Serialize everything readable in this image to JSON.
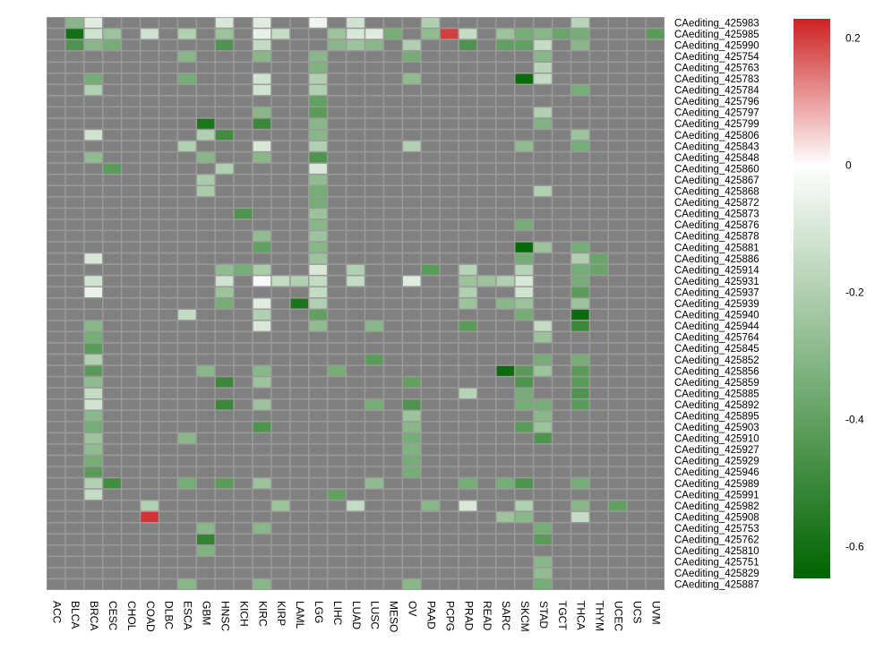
{
  "chart_data": {
    "type": "heatmap",
    "columns": [
      "ACC",
      "BLCA",
      "BRCA",
      "CESC",
      "CHOL",
      "COAD",
      "DLBC",
      "ESCA",
      "GBM",
      "HNSC",
      "KICH",
      "KIRC",
      "KIRP",
      "LAML",
      "LGG",
      "LIHC",
      "LUAD",
      "LUSC",
      "MESO",
      "OV",
      "PAAD",
      "PCPG",
      "PRAD",
      "READ",
      "SARC",
      "SKCM",
      "STAD",
      "TGCT",
      "THCA",
      "THYM",
      "UCEC",
      "UCS",
      "UVM"
    ],
    "rows": [
      "CAediting_425983",
      "CAediting_425985",
      "CAediting_425990",
      "CAediting_425754",
      "CAediting_425763",
      "CAediting_425783",
      "CAediting_425784",
      "CAediting_425796",
      "CAediting_425797",
      "CAediting_425799",
      "CAediting_425806",
      "CAediting_425843",
      "CAediting_425848",
      "CAediting_425860",
      "CAediting_425867",
      "CAediting_425868",
      "CAediting_425872",
      "CAediting_425873",
      "CAediting_425876",
      "CAediting_425878",
      "CAediting_425881",
      "CAediting_425886",
      "CAediting_425914",
      "CAediting_425931",
      "CAediting_425937",
      "CAediting_425939",
      "CAediting_425940",
      "CAediting_425944",
      "CAediting_425764",
      "CAediting_425845",
      "CAediting_425852",
      "CAediting_425856",
      "CAediting_425859",
      "CAediting_425885",
      "CAediting_425892",
      "CAediting_425895",
      "CAediting_425903",
      "CAediting_425910",
      "CAediting_425927",
      "CAediting_425929",
      "CAediting_425946",
      "CAediting_425989",
      "CAediting_425991",
      "CAediting_425982",
      "CAediting_425908",
      "CAediting_425753",
      "CAediting_425762",
      "CAediting_425810",
      "CAediting_425751",
      "CAediting_425829",
      "CAediting_425887"
    ],
    "missing_color": "#808080",
    "color_scale": {
      "min": -0.65,
      "max": 0.23,
      "stops": [
        {
          "value": -0.65,
          "color": "#006400"
        },
        {
          "value": 0,
          "color": "#ffffff"
        },
        {
          "value": 0.23,
          "color": "#cc2222"
        }
      ],
      "ticks": [
        {
          "value": 0.2,
          "label": "0.2"
        },
        {
          "value": 0,
          "label": "0"
        },
        {
          "value": -0.2,
          "label": "-0.2"
        },
        {
          "value": -0.4,
          "label": "-0.4"
        },
        {
          "value": -0.6,
          "label": "-0.6"
        }
      ]
    },
    "legend_position": "right",
    "cells": [
      [
        0,
        1,
        -0.3
      ],
      [
        0,
        2,
        -0.08
      ],
      [
        0,
        9,
        -0.1
      ],
      [
        0,
        11,
        -0.08
      ],
      [
        0,
        14,
        -0.04
      ],
      [
        0,
        16,
        -0.12
      ],
      [
        0,
        20,
        -0.2
      ],
      [
        0,
        28,
        -0.18
      ],
      [
        1,
        1,
        -0.6
      ],
      [
        1,
        2,
        -0.12
      ],
      [
        1,
        3,
        -0.25
      ],
      [
        1,
        5,
        -0.12
      ],
      [
        1,
        7,
        -0.2
      ],
      [
        1,
        9,
        -0.25
      ],
      [
        1,
        11,
        -0.06
      ],
      [
        1,
        12,
        -0.15
      ],
      [
        1,
        15,
        -0.25
      ],
      [
        1,
        16,
        -0.1
      ],
      [
        1,
        17,
        -0.08
      ],
      [
        1,
        18,
        -0.35
      ],
      [
        1,
        20,
        -0.28
      ],
      [
        1,
        21,
        0.2
      ],
      [
        1,
        22,
        -0.15
      ],
      [
        1,
        24,
        -0.25
      ],
      [
        1,
        25,
        -0.35
      ],
      [
        1,
        26,
        -0.3
      ],
      [
        1,
        27,
        -0.38
      ],
      [
        1,
        28,
        -0.35
      ],
      [
        1,
        32,
        -0.42
      ],
      [
        2,
        1,
        -0.45
      ],
      [
        2,
        2,
        -0.3
      ],
      [
        2,
        3,
        -0.35
      ],
      [
        2,
        9,
        -0.45
      ],
      [
        2,
        11,
        -0.15
      ],
      [
        2,
        15,
        -0.3
      ],
      [
        2,
        16,
        -0.25
      ],
      [
        2,
        17,
        -0.3
      ],
      [
        2,
        19,
        -0.2
      ],
      [
        2,
        22,
        -0.45
      ],
      [
        2,
        24,
        -0.4
      ],
      [
        2,
        25,
        -0.4
      ],
      [
        2,
        26,
        -0.15
      ],
      [
        2,
        28,
        -0.3
      ],
      [
        3,
        7,
        -0.3
      ],
      [
        3,
        11,
        -0.3
      ],
      [
        3,
        14,
        -0.3
      ],
      [
        3,
        19,
        -0.35
      ],
      [
        3,
        26,
        -0.3
      ],
      [
        4,
        14,
        -0.32
      ],
      [
        4,
        26,
        -0.18
      ],
      [
        5,
        2,
        -0.35
      ],
      [
        5,
        7,
        -0.35
      ],
      [
        5,
        11,
        -0.12
      ],
      [
        5,
        14,
        -0.2
      ],
      [
        5,
        19,
        -0.28
      ],
      [
        5,
        25,
        -0.62
      ],
      [
        5,
        26,
        -0.15
      ],
      [
        6,
        2,
        -0.2
      ],
      [
        6,
        11,
        -0.12
      ],
      [
        6,
        14,
        -0.2
      ],
      [
        6,
        28,
        -0.35
      ],
      [
        7,
        14,
        -0.4
      ],
      [
        8,
        11,
        -0.3
      ],
      [
        8,
        14,
        -0.42
      ],
      [
        8,
        26,
        -0.2
      ],
      [
        9,
        8,
        -0.58
      ],
      [
        9,
        11,
        -0.5
      ],
      [
        9,
        14,
        -0.3
      ],
      [
        9,
        26,
        -0.32
      ],
      [
        10,
        2,
        -0.12
      ],
      [
        10,
        8,
        -0.2
      ],
      [
        10,
        9,
        -0.48
      ],
      [
        10,
        14,
        -0.3
      ],
      [
        10,
        28,
        -0.25
      ],
      [
        11,
        7,
        -0.2
      ],
      [
        11,
        11,
        -0.1
      ],
      [
        11,
        14,
        -0.2
      ],
      [
        11,
        19,
        -0.2
      ],
      [
        11,
        25,
        -0.28
      ],
      [
        11,
        28,
        -0.35
      ],
      [
        12,
        2,
        -0.28
      ],
      [
        12,
        8,
        -0.3
      ],
      [
        12,
        11,
        -0.3
      ],
      [
        12,
        14,
        -0.45
      ],
      [
        13,
        3,
        -0.42
      ],
      [
        13,
        9,
        -0.2
      ],
      [
        13,
        14,
        -0.1
      ],
      [
        14,
        8,
        -0.22
      ],
      [
        14,
        14,
        -0.28
      ],
      [
        15,
        8,
        -0.22
      ],
      [
        15,
        14,
        -0.35
      ],
      [
        15,
        26,
        -0.2
      ],
      [
        16,
        14,
        -0.35
      ],
      [
        17,
        10,
        -0.45
      ],
      [
        17,
        14,
        -0.25
      ],
      [
        18,
        14,
        -0.3
      ],
      [
        18,
        25,
        -0.35
      ],
      [
        19,
        11,
        -0.28
      ],
      [
        19,
        14,
        -0.25
      ],
      [
        20,
        11,
        -0.4
      ],
      [
        20,
        14,
        -0.3
      ],
      [
        20,
        25,
        -0.63
      ],
      [
        20,
        26,
        -0.25
      ],
      [
        20,
        28,
        -0.35
      ],
      [
        21,
        2,
        -0.1
      ],
      [
        21,
        14,
        -0.25
      ],
      [
        21,
        25,
        -0.35
      ],
      [
        21,
        28,
        -0.2
      ],
      [
        21,
        29,
        -0.38
      ],
      [
        22,
        9,
        -0.28
      ],
      [
        22,
        10,
        -0.35
      ],
      [
        22,
        11,
        -0.22
      ],
      [
        22,
        14,
        -0.1
      ],
      [
        22,
        16,
        -0.2
      ],
      [
        22,
        20,
        -0.42
      ],
      [
        22,
        22,
        -0.18
      ],
      [
        22,
        25,
        -0.18
      ],
      [
        22,
        28,
        -0.35
      ],
      [
        22,
        29,
        -0.38
      ],
      [
        23,
        2,
        -0.12
      ],
      [
        23,
        9,
        -0.12
      ],
      [
        23,
        11,
        -0.02
      ],
      [
        23,
        12,
        -0.15
      ],
      [
        23,
        13,
        -0.2
      ],
      [
        23,
        14,
        -0.15
      ],
      [
        23,
        16,
        -0.15
      ],
      [
        23,
        19,
        -0.08
      ],
      [
        23,
        22,
        -0.25
      ],
      [
        23,
        23,
        -0.25
      ],
      [
        23,
        24,
        -0.2
      ],
      [
        23,
        25,
        -0.1
      ],
      [
        23,
        28,
        -0.35
      ],
      [
        24,
        2,
        -0.05
      ],
      [
        24,
        9,
        -0.25
      ],
      [
        24,
        14,
        -0.15
      ],
      [
        24,
        22,
        -0.2
      ],
      [
        24,
        25,
        -0.12
      ],
      [
        24,
        28,
        -0.42
      ],
      [
        25,
        9,
        -0.35
      ],
      [
        25,
        11,
        -0.08
      ],
      [
        25,
        13,
        -0.58
      ],
      [
        25,
        14,
        -0.2
      ],
      [
        25,
        22,
        -0.25
      ],
      [
        25,
        24,
        -0.3
      ],
      [
        25,
        25,
        -0.25
      ],
      [
        25,
        28,
        -0.25
      ],
      [
        26,
        7,
        -0.15
      ],
      [
        26,
        11,
        -0.2
      ],
      [
        26,
        14,
        -0.4
      ],
      [
        26,
        25,
        -0.35
      ],
      [
        26,
        28,
        -0.62
      ],
      [
        27,
        2,
        -0.3
      ],
      [
        27,
        11,
        -0.1
      ],
      [
        27,
        14,
        -0.28
      ],
      [
        27,
        17,
        -0.3
      ],
      [
        27,
        22,
        -0.42
      ],
      [
        27,
        26,
        -0.15
      ],
      [
        27,
        28,
        -0.5
      ],
      [
        28,
        2,
        -0.35
      ],
      [
        28,
        26,
        -0.25
      ],
      [
        29,
        2,
        -0.42
      ],
      [
        30,
        2,
        -0.2
      ],
      [
        30,
        17,
        -0.42
      ],
      [
        30,
        26,
        -0.35
      ],
      [
        30,
        28,
        -0.35
      ],
      [
        31,
        2,
        -0.42
      ],
      [
        31,
        8,
        -0.3
      ],
      [
        31,
        11,
        -0.3
      ],
      [
        31,
        15,
        -0.35
      ],
      [
        31,
        24,
        -0.62
      ],
      [
        31,
        25,
        -0.42
      ],
      [
        31,
        26,
        -0.25
      ],
      [
        31,
        28,
        -0.42
      ],
      [
        32,
        2,
        -0.28
      ],
      [
        32,
        9,
        -0.5
      ],
      [
        32,
        11,
        -0.25
      ],
      [
        32,
        19,
        -0.4
      ],
      [
        32,
        25,
        -0.45
      ],
      [
        32,
        28,
        -0.42
      ],
      [
        33,
        2,
        -0.15
      ],
      [
        33,
        22,
        -0.18
      ],
      [
        33,
        25,
        -0.35
      ],
      [
        33,
        28,
        -0.45
      ],
      [
        34,
        2,
        -0.12
      ],
      [
        34,
        9,
        -0.5
      ],
      [
        34,
        11,
        -0.25
      ],
      [
        34,
        17,
        -0.35
      ],
      [
        34,
        19,
        -0.45
      ],
      [
        34,
        25,
        -0.35
      ],
      [
        34,
        26,
        -0.35
      ],
      [
        34,
        28,
        -0.42
      ],
      [
        35,
        2,
        -0.3
      ],
      [
        35,
        19,
        -0.25
      ],
      [
        35,
        26,
        -0.3
      ],
      [
        36,
        2,
        -0.35
      ],
      [
        36,
        11,
        -0.45
      ],
      [
        36,
        19,
        -0.3
      ],
      [
        36,
        25,
        -0.42
      ],
      [
        36,
        26,
        -0.25
      ],
      [
        37,
        2,
        -0.25
      ],
      [
        37,
        7,
        -0.3
      ],
      [
        37,
        19,
        -0.35
      ],
      [
        37,
        26,
        -0.45
      ],
      [
        38,
        2,
        -0.28
      ],
      [
        38,
        19,
        -0.32
      ],
      [
        39,
        2,
        -0.35
      ],
      [
        39,
        19,
        -0.35
      ],
      [
        40,
        2,
        -0.42
      ],
      [
        40,
        19,
        -0.35
      ],
      [
        41,
        2,
        -0.2
      ],
      [
        41,
        3,
        -0.48
      ],
      [
        41,
        7,
        -0.35
      ],
      [
        41,
        9,
        -0.42
      ],
      [
        41,
        11,
        -0.25
      ],
      [
        41,
        17,
        -0.28
      ],
      [
        41,
        22,
        -0.35
      ],
      [
        41,
        24,
        -0.35
      ],
      [
        41,
        25,
        -0.45
      ],
      [
        41,
        28,
        -0.35
      ],
      [
        42,
        2,
        -0.15
      ],
      [
        42,
        15,
        -0.4
      ],
      [
        43,
        5,
        -0.2
      ],
      [
        43,
        12,
        -0.25
      ],
      [
        43,
        16,
        -0.15
      ],
      [
        43,
        20,
        -0.3
      ],
      [
        43,
        22,
        -0.1
      ],
      [
        43,
        25,
        -0.2
      ],
      [
        43,
        28,
        -0.3
      ],
      [
        43,
        30,
        -0.4
      ],
      [
        44,
        5,
        0.21
      ],
      [
        44,
        24,
        -0.25
      ],
      [
        44,
        25,
        -0.3
      ],
      [
        44,
        28,
        -0.15
      ],
      [
        45,
        8,
        -0.3
      ],
      [
        45,
        11,
        -0.3
      ],
      [
        45,
        26,
        -0.35
      ],
      [
        46,
        8,
        -0.52
      ],
      [
        46,
        26,
        -0.42
      ],
      [
        47,
        8,
        -0.32
      ],
      [
        48,
        26,
        -0.3
      ],
      [
        49,
        26,
        -0.28
      ],
      [
        50,
        7,
        -0.3
      ],
      [
        50,
        11,
        -0.3
      ],
      [
        50,
        19,
        -0.3
      ],
      [
        50,
        26,
        -0.35
      ]
    ]
  }
}
